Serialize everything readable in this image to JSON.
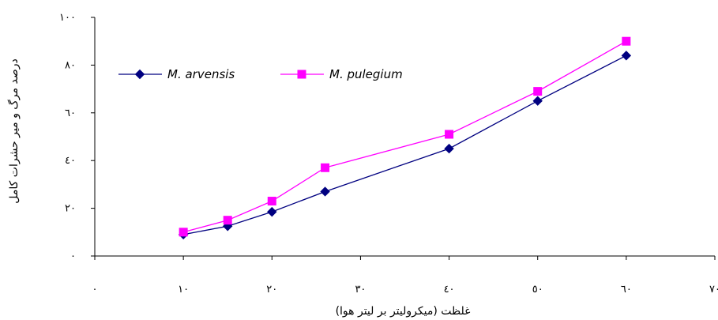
{
  "chart_data": {
    "type": "line",
    "title": "",
    "xlabel": "غلظت (میکرولیتر بر لیتر هوا)",
    "ylabel": "درصد مرگ و میر حشرات کامل",
    "x_ticks": [
      "٠",
      "١٠",
      "٢٠",
      "٣٠",
      "٤٠",
      "٥٠",
      "٦٠",
      "٧٠"
    ],
    "y_ticks": [
      "٠",
      "٢٠",
      "٤٠",
      "٦٠",
      "٨٠",
      "١٠٠"
    ],
    "xlim": [
      0,
      70
    ],
    "ylim": [
      0,
      100
    ],
    "grid": false,
    "legend_position": "top-left",
    "series": [
      {
        "name": "M. arvensis",
        "color": "#000080",
        "marker": "diamond",
        "x": [
          10,
          15,
          20,
          26,
          40,
          50,
          60
        ],
        "y": [
          9,
          12.5,
          18.5,
          27,
          45,
          65,
          84
        ]
      },
      {
        "name": "M. pulegium",
        "color": "#FF00FF",
        "marker": "square",
        "x": [
          10,
          15,
          20,
          26,
          40,
          50,
          60
        ],
        "y": [
          10,
          15,
          23,
          37,
          51,
          69,
          90
        ]
      }
    ]
  }
}
